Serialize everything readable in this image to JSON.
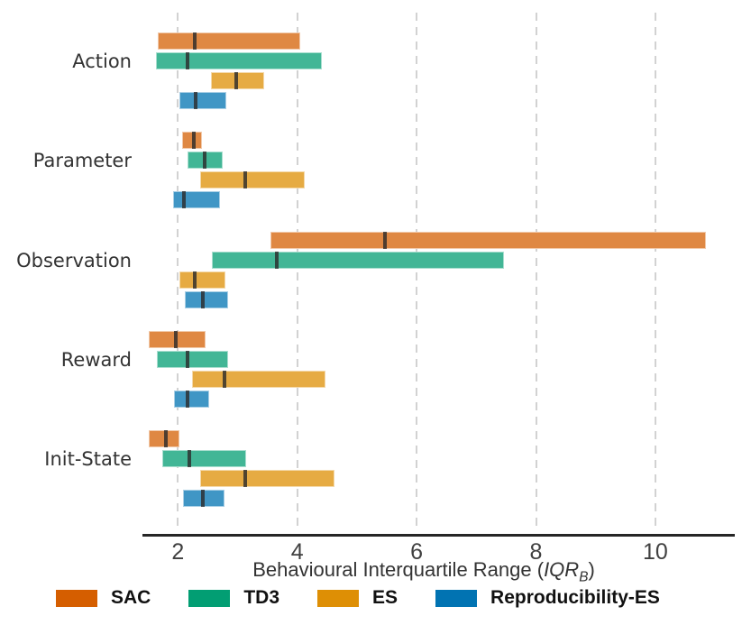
{
  "chart": {
    "xlabel": {
      "prefix": "Behavioural Interquartile Range (",
      "var": "IQR",
      "sub": "B",
      "suffix": ")"
    }
  },
  "chart_data": {
    "type": "bar",
    "subtype": "horizontal-range-bars-with-median",
    "title": "",
    "xlabel": "Behavioural Interquartile Range (IQR_B)",
    "ylabel": "",
    "grid": "vertical-dashed",
    "legend_position": "bottom",
    "x_range": [
      1.41,
      11.33
    ],
    "x_tick_values": [
      2,
      4,
      6,
      8,
      10
    ],
    "x_tick_labels": [
      "2",
      "4",
      "6",
      "8",
      "10"
    ],
    "categories": [
      "Action",
      "Parameter",
      "Observation",
      "Reward",
      "Init-State"
    ],
    "median_marker_color": "#2a2a2a",
    "series": [
      {
        "name": "SAC",
        "color": "#d55e00",
        "bar_fill": "#df8843",
        "min": [
          1.66,
          2.07,
          3.55,
          1.51,
          1.51
        ],
        "median": [
          2.27,
          2.26,
          5.46,
          1.95,
          1.78
        ],
        "max": [
          4.05,
          2.41,
          10.85,
          2.46,
          2.02
        ]
      },
      {
        "name": "TD3",
        "color": "#029e73",
        "bar_fill": "#42b696",
        "min": [
          1.63,
          2.16,
          2.57,
          1.65,
          1.74
        ],
        "median": [
          2.14,
          2.43,
          3.64,
          2.15,
          2.18
        ],
        "max": [
          4.42,
          2.75,
          7.46,
          2.84,
          3.15
        ]
      },
      {
        "name": "ES",
        "color": "#de8f05",
        "bar_fill": "#e6ab43",
        "min": [
          2.56,
          2.37,
          2.03,
          2.24,
          2.37
        ],
        "median": [
          2.96,
          3.11,
          2.27,
          2.76,
          3.11
        ],
        "max": [
          3.44,
          4.12,
          2.8,
          4.47,
          4.63
        ]
      },
      {
        "name": "Reproducibility-ES",
        "color": "#0173b2",
        "bar_fill": "#4096c5",
        "min": [
          2.03,
          1.92,
          2.12,
          1.94,
          2.09
        ],
        "median": [
          2.29,
          2.08,
          2.41,
          2.14,
          2.4
        ],
        "max": [
          2.81,
          2.7,
          2.84,
          2.52,
          2.78
        ]
      }
    ]
  },
  "legend": {
    "items": [
      {
        "label": "SAC",
        "color": "#d55e00"
      },
      {
        "label": "TD3",
        "color": "#029e73"
      },
      {
        "label": "ES",
        "color": "#de8f05"
      },
      {
        "label": "Reproducibility-ES",
        "color": "#0173b2"
      }
    ]
  }
}
